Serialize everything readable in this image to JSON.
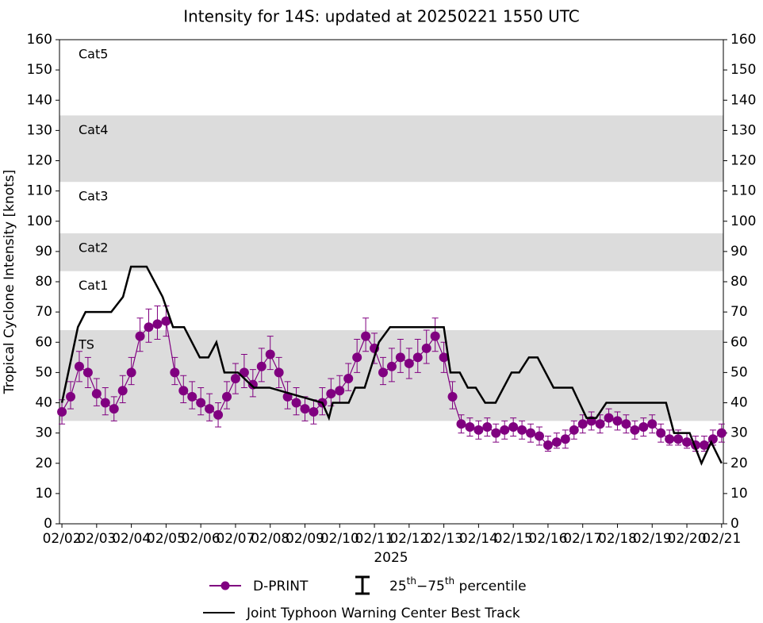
{
  "chart_data": {
    "type": "line",
    "title": "Intensity for 14S: updated at 20250221 1550 UTC",
    "ylabel": "Tropical Cyclone Intensity [knots]",
    "xlabel": "2025",
    "xlim": [
      -0.07,
      19.05
    ],
    "ylim": [
      0,
      160
    ],
    "yticks": [
      0,
      10,
      20,
      30,
      40,
      50,
      60,
      70,
      80,
      90,
      100,
      110,
      120,
      130,
      140,
      150,
      160
    ],
    "xticks": [
      {
        "value": 0,
        "label": "02/02"
      },
      {
        "value": 1,
        "label": "02/03"
      },
      {
        "value": 2,
        "label": "02/04"
      },
      {
        "value": 3,
        "label": "02/05"
      },
      {
        "value": 4,
        "label": "02/06"
      },
      {
        "value": 5,
        "label": "02/07"
      },
      {
        "value": 6,
        "label": "02/08"
      },
      {
        "value": 7,
        "label": "02/09"
      },
      {
        "value": 8,
        "label": "02/10"
      },
      {
        "value": 9,
        "label": "02/11"
      },
      {
        "value": 10,
        "label": "02/12"
      },
      {
        "value": 11,
        "label": "02/13"
      },
      {
        "value": 12,
        "label": "02/14"
      },
      {
        "value": 13,
        "label": "02/15"
      },
      {
        "value": 14,
        "label": "02/16"
      },
      {
        "value": 15,
        "label": "02/17"
      },
      {
        "value": 16,
        "label": "02/18"
      },
      {
        "value": 17,
        "label": "02/19"
      },
      {
        "value": 18,
        "label": "02/20"
      },
      {
        "value": 19,
        "label": "02/21"
      }
    ],
    "bands": [
      {
        "label": "TS",
        "range": [
          34,
          64
        ],
        "color": "#dcdcdc"
      },
      {
        "label": "Cat1",
        "range": [
          64,
          83.5
        ],
        "color": "#ffffff"
      },
      {
        "label": "Cat2",
        "range": [
          83.5,
          96
        ],
        "color": "#dcdcdc"
      },
      {
        "label": "Cat3",
        "range": [
          96,
          113
        ],
        "color": "#ffffff"
      },
      {
        "label": "Cat4",
        "range": [
          113,
          135
        ],
        "color": "#dcdcdc"
      },
      {
        "label": "Cat5",
        "range": [
          135,
          160
        ],
        "color": "#ffffff"
      }
    ],
    "percentile_label": [
      "25",
      "th",
      "−75",
      "th",
      " percentile"
    ],
    "series": [
      {
        "name": "D-PRINT",
        "color": "#800080",
        "x": [
          0,
          0.25,
          0.5,
          0.75,
          1,
          1.25,
          1.5,
          1.75,
          2,
          2.25,
          2.5,
          2.75,
          3,
          3.25,
          3.5,
          3.75,
          4,
          4.25,
          4.5,
          4.75,
          5,
          5.25,
          5.5,
          5.75,
          6,
          6.25,
          6.5,
          6.75,
          7,
          7.25,
          7.5,
          7.75,
          8,
          8.25,
          8.5,
          8.75,
          9,
          9.25,
          9.5,
          9.75,
          10,
          10.25,
          10.5,
          10.75,
          11,
          11.25,
          11.5,
          11.75,
          12,
          12.25,
          12.5,
          12.75,
          13,
          13.25,
          13.5,
          13.75,
          14,
          14.25,
          14.5,
          14.75,
          15,
          15.25,
          15.5,
          15.75,
          16,
          16.25,
          16.5,
          16.75,
          17,
          17.25,
          17.5,
          17.75,
          18,
          18.25,
          18.5,
          18.75,
          19
        ],
        "values": [
          37,
          42,
          52,
          50,
          43,
          40,
          38,
          44,
          50,
          62,
          65,
          66,
          67,
          50,
          44,
          42,
          40,
          38,
          36,
          42,
          48,
          50,
          46,
          52,
          56,
          50,
          42,
          40,
          38,
          37,
          40,
          43,
          44,
          48,
          55,
          62,
          58,
          50,
          52,
          55,
          53,
          55,
          58,
          62,
          55,
          42,
          33,
          32,
          31,
          32,
          30,
          31,
          32,
          31,
          30,
          29,
          26,
          27,
          28,
          31,
          33,
          34,
          33,
          35,
          34,
          33,
          31,
          32,
          33,
          30,
          28,
          28,
          27,
          26,
          26,
          28,
          30
        ],
        "q25": [
          33,
          38,
          47,
          45,
          39,
          36,
          34,
          40,
          46,
          57,
          60,
          61,
          62,
          46,
          40,
          38,
          36,
          34,
          32,
          38,
          43,
          45,
          42,
          47,
          51,
          45,
          38,
          36,
          34,
          33,
          36,
          39,
          40,
          44,
          50,
          57,
          53,
          46,
          47,
          50,
          48,
          50,
          53,
          57,
          50,
          38,
          30,
          29,
          28,
          29,
          27,
          28,
          29,
          28,
          27,
          26,
          24,
          25,
          25,
          28,
          30,
          31,
          30,
          32,
          31,
          30,
          28,
          29,
          30,
          27,
          26,
          26,
          25,
          24,
          24,
          26,
          27
        ],
        "q75": [
          41,
          47,
          57,
          55,
          48,
          45,
          42,
          49,
          55,
          68,
          71,
          72,
          72,
          55,
          49,
          47,
          45,
          43,
          40,
          47,
          53,
          56,
          51,
          58,
          62,
          55,
          47,
          45,
          42,
          41,
          45,
          48,
          49,
          53,
          61,
          68,
          63,
          55,
          58,
          61,
          58,
          61,
          64,
          68,
          60,
          47,
          36,
          35,
          34,
          35,
          33,
          34,
          35,
          34,
          33,
          32,
          29,
          30,
          31,
          34,
          36,
          37,
          36,
          38,
          37,
          36,
          34,
          35,
          36,
          33,
          31,
          31,
          30,
          29,
          29,
          31,
          33
        ]
      },
      {
        "name": "Joint Typhoon Warning Center Best Track",
        "color": "#000000",
        "x": [
          0,
          0.46,
          0.68,
          1.42,
          1.76,
          1.99,
          2.44,
          2.9,
          3.2,
          3.52,
          3.97,
          4.22,
          4.45,
          4.68,
          5.07,
          5.53,
          5.98,
          7.5,
          7.69,
          7.8,
          8.26,
          8.45,
          8.72,
          9.13,
          9.45,
          11.0,
          11.19,
          11.46,
          11.69,
          11.92,
          12.19,
          12.49,
          12.95,
          13.17,
          13.45,
          13.7,
          14.16,
          14.7,
          15.11,
          15.39,
          15.68,
          17.4,
          17.63,
          18.08,
          18.42,
          18.7,
          19.0
        ],
        "values": [
          40,
          65,
          70,
          70,
          75,
          85,
          85,
          75,
          65,
          65,
          55,
          55,
          60,
          50,
          50,
          45,
          45,
          40,
          35,
          40,
          40,
          45,
          45,
          60,
          65,
          65,
          50,
          50,
          45,
          45,
          40,
          40,
          50,
          50,
          55,
          55,
          45,
          45,
          35,
          35,
          40,
          40,
          30,
          30,
          20,
          27,
          20
        ]
      }
    ]
  }
}
